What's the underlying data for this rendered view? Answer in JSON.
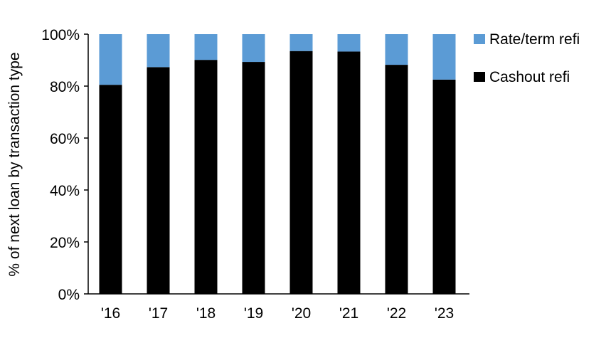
{
  "chart_data": {
    "type": "bar",
    "stacked": true,
    "title": "",
    "xlabel": "",
    "ylabel": "% of next loan by transaction type",
    "ylim": [
      0,
      100
    ],
    "yticks": [
      "0%",
      "20%",
      "40%",
      "60%",
      "80%",
      "100%"
    ],
    "ytick_values": [
      0,
      20,
      40,
      60,
      80,
      100
    ],
    "categories": [
      "'16",
      "'17",
      "'18",
      "'19",
      "'20",
      "'21",
      "'22",
      "'23"
    ],
    "series": [
      {
        "name": "Cashout refi",
        "color": "#000000",
        "values": [
          80.5,
          87.3,
          90.1,
          89.3,
          93.5,
          93.3,
          88.2,
          82.5
        ]
      },
      {
        "name": "Rate/term refi",
        "color": "#5B9BD5",
        "values": [
          19.5,
          12.7,
          9.9,
          10.7,
          6.5,
          6.7,
          11.8,
          17.5
        ]
      }
    ],
    "legend": {
      "position": "top-right",
      "order": [
        "Rate/term refi",
        "Cashout refi"
      ]
    },
    "grid": false
  }
}
